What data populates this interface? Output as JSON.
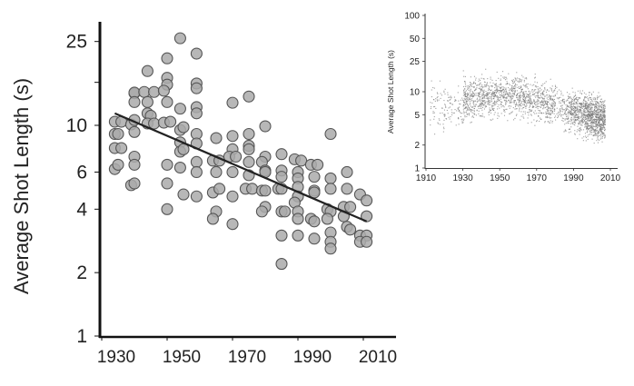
{
  "chart_data": [
    {
      "type": "scatter",
      "title": "",
      "xlabel": "",
      "ylabel": "Average Shot Length (s)",
      "y_scale": "log",
      "xlim": [
        1930,
        2010
      ],
      "ylim": [
        1,
        25
      ],
      "x_ticks": [
        1930,
        1950,
        1970,
        1990,
        2010
      ],
      "y_ticks": [
        {
          "value": 1,
          "label": "1"
        },
        {
          "value": 2,
          "label": "2"
        },
        {
          "value": 4,
          "label": "4"
        },
        {
          "value": 6,
          "label": "6"
        },
        {
          "value": 10,
          "label": "10"
        },
        {
          "value": 16,
          "label": ""
        },
        {
          "value": 25,
          "label": "25"
        }
      ],
      "grid": false,
      "marker_color": "#aaaaaa",
      "marker_edge_color": "#555555",
      "trend_line": {
        "x": [
          1934,
          2011
        ],
        "y": [
          11.4,
          3.5
        ],
        "color": "#222222"
      },
      "points": [
        [
          1934,
          10.4
        ],
        [
          1936,
          10.4
        ],
        [
          1934,
          9.1
        ],
        [
          1935,
          9.1
        ],
        [
          1934,
          7.8
        ],
        [
          1936,
          7.8
        ],
        [
          1934,
          6.2
        ],
        [
          1935,
          6.5
        ],
        [
          1940,
          14.2
        ],
        [
          1940,
          14.3
        ],
        [
          1940,
          12.9
        ],
        [
          1939,
          10.1
        ],
        [
          1940,
          10.6
        ],
        [
          1940,
          9.3
        ],
        [
          1940,
          7.1
        ],
        [
          1940,
          6.5
        ],
        [
          1939,
          5.2
        ],
        [
          1940,
          5.3
        ],
        [
          1944,
          18.1
        ],
        [
          1943,
          14.4
        ],
        [
          1946,
          14.4
        ],
        [
          1944,
          12.9
        ],
        [
          1944,
          11.4
        ],
        [
          1945,
          11.1
        ],
        [
          1944,
          10.2
        ],
        [
          1946,
          10.2
        ],
        [
          1950,
          20.8
        ],
        [
          1950,
          16.8
        ],
        [
          1950,
          15.6
        ],
        [
          1949,
          14.6
        ],
        [
          1950,
          12.9
        ],
        [
          1949,
          10.3
        ],
        [
          1951,
          10.4
        ],
        [
          1950,
          6.5
        ],
        [
          1950,
          5.3
        ],
        [
          1950,
          4.0
        ],
        [
          1954,
          25.9
        ],
        [
          1954,
          12.0
        ],
        [
          1954,
          9.5
        ],
        [
          1955,
          9.8
        ],
        [
          1954,
          8.3
        ],
        [
          1954,
          7.5
        ],
        [
          1955,
          7.7
        ],
        [
          1954,
          6.3
        ],
        [
          1955,
          4.7
        ],
        [
          1959,
          21.9
        ],
        [
          1959,
          15.8
        ],
        [
          1959,
          15.0
        ],
        [
          1959,
          12.2
        ],
        [
          1959,
          11.4
        ],
        [
          1959,
          9.1
        ],
        [
          1959,
          8.2
        ],
        [
          1959,
          6.7
        ],
        [
          1959,
          6.0
        ],
        [
          1959,
          4.6
        ],
        [
          1965,
          8.7
        ],
        [
          1964,
          6.8
        ],
        [
          1966,
          6.8
        ],
        [
          1965,
          6.0
        ],
        [
          1964,
          4.8
        ],
        [
          1966,
          5.0
        ],
        [
          1965,
          3.9
        ],
        [
          1964,
          3.6
        ],
        [
          1970,
          12.8
        ],
        [
          1970,
          8.9
        ],
        [
          1970,
          7.7
        ],
        [
          1969,
          7.1
        ],
        [
          1971,
          7.1
        ],
        [
          1970,
          6.0
        ],
        [
          1970,
          4.6
        ],
        [
          1970,
          3.4
        ],
        [
          1975,
          13.7
        ],
        [
          1975,
          9.1
        ],
        [
          1975,
          8.0
        ],
        [
          1975,
          7.7
        ],
        [
          1975,
          6.7
        ],
        [
          1975,
          5.8
        ],
        [
          1974,
          5.0
        ],
        [
          1976,
          5.0
        ],
        [
          1980,
          9.9
        ],
        [
          1980,
          7.1
        ],
        [
          1979,
          6.7
        ],
        [
          1980,
          6.1
        ],
        [
          1980,
          6.0
        ],
        [
          1979,
          4.9
        ],
        [
          1980,
          4.9
        ],
        [
          1980,
          4.1
        ],
        [
          1979,
          3.9
        ],
        [
          1985,
          7.3
        ],
        [
          1985,
          6.1
        ],
        [
          1985,
          5.7
        ],
        [
          1984,
          5.0
        ],
        [
          1985,
          5.0
        ],
        [
          1985,
          3.9
        ],
        [
          1986,
          3.9
        ],
        [
          1985,
          3.0
        ],
        [
          1985,
          2.2
        ],
        [
          1989,
          6.9
        ],
        [
          1991,
          6.8
        ],
        [
          1990,
          6.0
        ],
        [
          1990,
          5.6
        ],
        [
          1990,
          5.1
        ],
        [
          1990,
          4.6
        ],
        [
          1989,
          4.3
        ],
        [
          1990,
          3.9
        ],
        [
          1990,
          3.6
        ],
        [
          1990,
          3.0
        ],
        [
          1994,
          6.5
        ],
        [
          1996,
          6.5
        ],
        [
          1995,
          5.7
        ],
        [
          1995,
          4.9
        ],
        [
          1995,
          4.8
        ],
        [
          1994,
          3.6
        ],
        [
          1995,
          3.5
        ],
        [
          1995,
          2.9
        ],
        [
          2000,
          9.1
        ],
        [
          2000,
          5.6
        ],
        [
          2000,
          5.0
        ],
        [
          1999,
          4.0
        ],
        [
          2000,
          3.9
        ],
        [
          1999,
          3.6
        ],
        [
          2000,
          3.1
        ],
        [
          2000,
          2.8
        ],
        [
          2000,
          2.6
        ],
        [
          2005,
          6.0
        ],
        [
          2005,
          5.0
        ],
        [
          2004,
          4.1
        ],
        [
          2006,
          4.1
        ],
        [
          2004,
          3.7
        ],
        [
          2005,
          3.3
        ],
        [
          2006,
          3.2
        ],
        [
          2009,
          4.7
        ],
        [
          2011,
          4.4
        ],
        [
          2011,
          3.7
        ],
        [
          2009,
          3.0
        ],
        [
          2011,
          3.0
        ],
        [
          2009,
          2.8
        ],
        [
          2011,
          2.8
        ]
      ]
    },
    {
      "type": "scatter",
      "title": "",
      "xlabel": "",
      "ylabel": "Average Shot Length (s)",
      "y_scale": "log",
      "xlim": [
        1910,
        2010
      ],
      "ylim": [
        1,
        100
      ],
      "x_ticks": [
        1910,
        1930,
        1950,
        1970,
        1990,
        2010
      ],
      "y_ticks": [
        {
          "value": 1,
          "label": "1"
        },
        {
          "value": 2,
          "label": "2"
        },
        {
          "value": 5,
          "label": "5"
        },
        {
          "value": 10,
          "label": "10"
        },
        {
          "value": 25,
          "label": "25"
        },
        {
          "value": 50,
          "label": "50"
        },
        {
          "value": 100,
          "label": "100"
        }
      ],
      "grid": false,
      "marker_color": "#777777"
    }
  ]
}
